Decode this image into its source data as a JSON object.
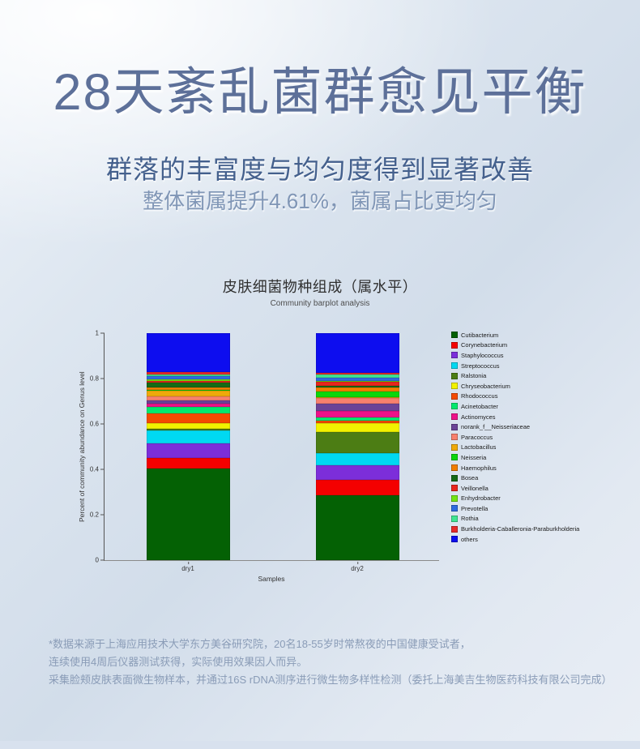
{
  "header": {
    "title": "28天紊乱菌群愈见平衡",
    "subtitle": "群落的丰富度与均匀度得到显著改善",
    "description": "整体菌属提升4.61%，菌属占比更均匀"
  },
  "chart_data": {
    "type": "bar",
    "stacked": true,
    "title": "皮肤细菌物种组成（属水平）",
    "subtitle": "Community barplot analysis",
    "xlabel": "Samples",
    "ylabel": "Percent of community abundance on Genus level",
    "categories": [
      "dry1",
      "dry2"
    ],
    "ylim": [
      0,
      1
    ],
    "yticks": [
      0,
      0.2,
      0.4,
      0.6,
      0.8,
      1
    ],
    "grid": false,
    "legend_position": "right",
    "series": [
      {
        "name": "Cutibacterium",
        "color": "#046104",
        "values": [
          0.402,
          0.285
        ]
      },
      {
        "name": "Corynebacterium",
        "color": "#F40000",
        "values": [
          0.048,
          0.068
        ]
      },
      {
        "name": "Staphylococcus",
        "color": "#7C2EDA",
        "values": [
          0.063,
          0.066
        ]
      },
      {
        "name": "Streptococcus",
        "color": "#00D9F2",
        "values": [
          0.059,
          0.054
        ]
      },
      {
        "name": "Ralstonia",
        "color": "#4C7D14",
        "values": [
          0.008,
          0.09
        ]
      },
      {
        "name": "Chryseobacterium",
        "color": "#F2F200",
        "values": [
          0.022,
          0.042
        ]
      },
      {
        "name": "Rhodococcus",
        "color": "#F44A00",
        "values": [
          0.045,
          0.01
        ]
      },
      {
        "name": "Acinetobacter",
        "color": "#00E96E",
        "values": [
          0.028,
          0.014
        ]
      },
      {
        "name": "Actinomyces",
        "color": "#EE1289",
        "values": [
          0.013,
          0.03
        ]
      },
      {
        "name": "norank_f__Neisseriaceae",
        "color": "#6B4397",
        "values": [
          0.017,
          0.03
        ]
      },
      {
        "name": "Paracoccus",
        "color": "#F8806E",
        "values": [
          0.017,
          0.027
        ]
      },
      {
        "name": "Lactobacillus",
        "color": "#EFA90A",
        "values": [
          0.025,
          0.003
        ]
      },
      {
        "name": "Neisseria",
        "color": "#0BD60B",
        "values": [
          0.005,
          0.024
        ]
      },
      {
        "name": "Haemophilus",
        "color": "#F07E00",
        "values": [
          0.01,
          0.018
        ]
      },
      {
        "name": "Bosea",
        "color": "#156A15",
        "values": [
          0.022,
          0.008
        ]
      },
      {
        "name": "Veillonella",
        "color": "#E8261C",
        "values": [
          0.007,
          0.016
        ]
      },
      {
        "name": "Enhydrobacter",
        "color": "#74E414",
        "values": [
          0.007,
          0.006
        ]
      },
      {
        "name": "Prevotella",
        "color": "#2E6BE0",
        "values": [
          0.013,
          0.014
        ]
      },
      {
        "name": "Rothia",
        "color": "#3FE492",
        "values": [
          0.008,
          0.012
        ]
      },
      {
        "name": "Burkholderia-Caballeronia-Paraburkholderia",
        "color": "#E62A2A",
        "values": [
          0.01,
          0.007
        ]
      },
      {
        "name": "others",
        "color": "#0D0DEF",
        "values": [
          0.171,
          0.176
        ]
      }
    ]
  },
  "footnote": {
    "lines": [
      "*数据来源于上海应用技术大学东方美谷研究院，20名18-55岁时常熬夜的中国健康受试者，",
      "连续使用4周后仪器测试获得，实际使用效果因人而异。",
      "采集脸颊皮肤表面微生物样本，并通过16S rDNA测序进行微生物多样性检测（委托上海美吉生物医药科技有限公司完成）"
    ]
  }
}
